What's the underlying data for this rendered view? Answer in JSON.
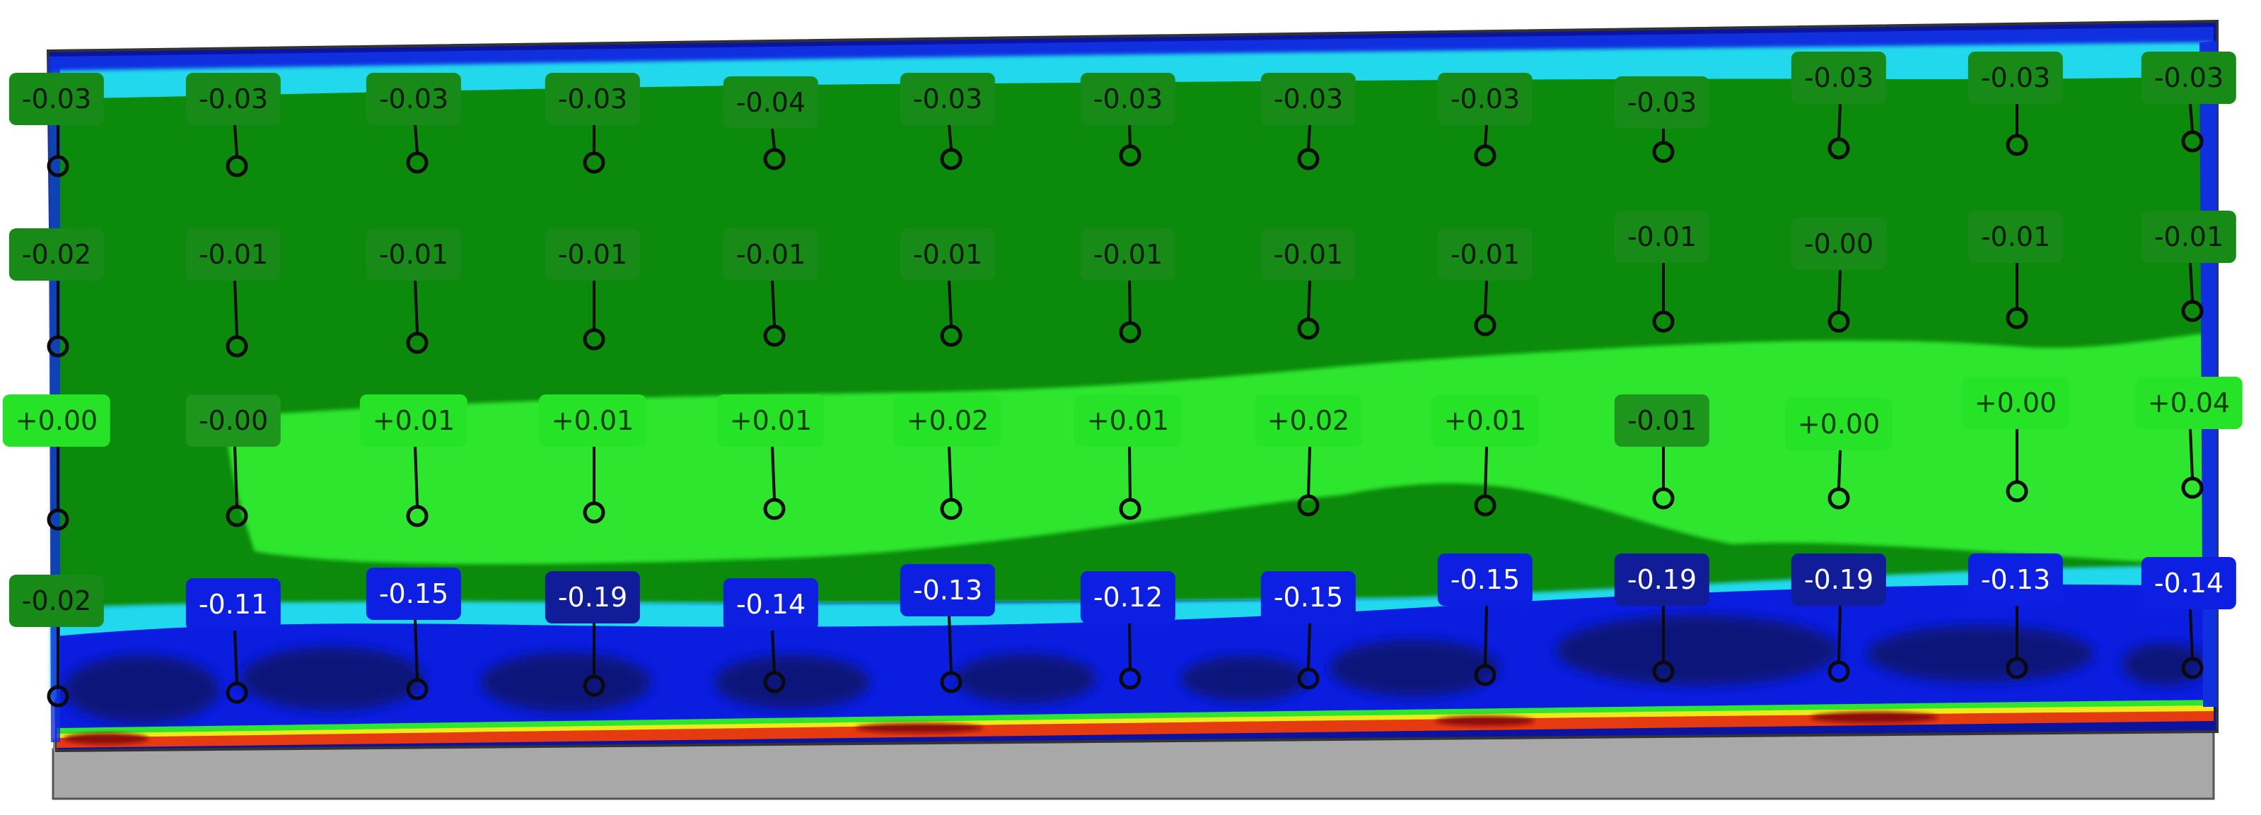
{
  "deviation_map": {
    "rows": [
      {
        "row": 1,
        "values": [
          "-0.03",
          "-0.03",
          "-0.03",
          "-0.03",
          "-0.04",
          "-0.03",
          "-0.03",
          "-0.03",
          "-0.03",
          "-0.03",
          "-0.03",
          "-0.03",
          "-0.03"
        ]
      },
      {
        "row": 2,
        "values": [
          "-0.02",
          "-0.01",
          "-0.01",
          "-0.01",
          "-0.01",
          "-0.01",
          "-0.01",
          "-0.01",
          "-0.01",
          "-0.01",
          "-0.00",
          "-0.01",
          "-0.01"
        ]
      },
      {
        "row": 3,
        "values": [
          "+0.00",
          "-0.00",
          "+0.01",
          "+0.01",
          "+0.01",
          "+0.02",
          "+0.01",
          "+0.02",
          "+0.01",
          "-0.01",
          "+0.00",
          "+0.00",
          "+0.04"
        ]
      },
      {
        "row": 4,
        "values": [
          "-0.02",
          "-0.11",
          "-0.15",
          "-0.19",
          "-0.14",
          "-0.13",
          "-0.12",
          "-0.15",
          "-0.15",
          "-0.19",
          "-0.19",
          "-0.13",
          "-0.14"
        ]
      }
    ],
    "label_styles": {
      "row1": [
        "dg",
        "dg",
        "dg",
        "dg",
        "dg",
        "dg",
        "dg",
        "dg",
        "dg",
        "dg",
        "dg",
        "dg",
        "dg"
      ],
      "row2": [
        "dg",
        "dg",
        "dg",
        "dg",
        "dg",
        "dg",
        "dg",
        "dg",
        "dg",
        "dg",
        "dg",
        "dg",
        "dg"
      ],
      "row3": [
        "lg",
        "dg2",
        "lg",
        "lg",
        "lg",
        "lg",
        "lg",
        "lg",
        "lg",
        "dg2",
        "lg",
        "lg",
        "lg"
      ],
      "row4": [
        "dg",
        "bl",
        "bl",
        "nv",
        "bl",
        "bl",
        "bl",
        "bl",
        "bl",
        "nv",
        "nv",
        "bl",
        "bl"
      ]
    },
    "colors": {
      "dark_green": "#0b8a0b",
      "light_green": "#2ee62e",
      "cyan": "#22d8ec",
      "blue": "#0b1ee0",
      "navy": "#0a1474",
      "edge_red": "#e63a10",
      "edge_yellow": "#f0e81a",
      "base_gray": "#a8a8a8"
    }
  }
}
